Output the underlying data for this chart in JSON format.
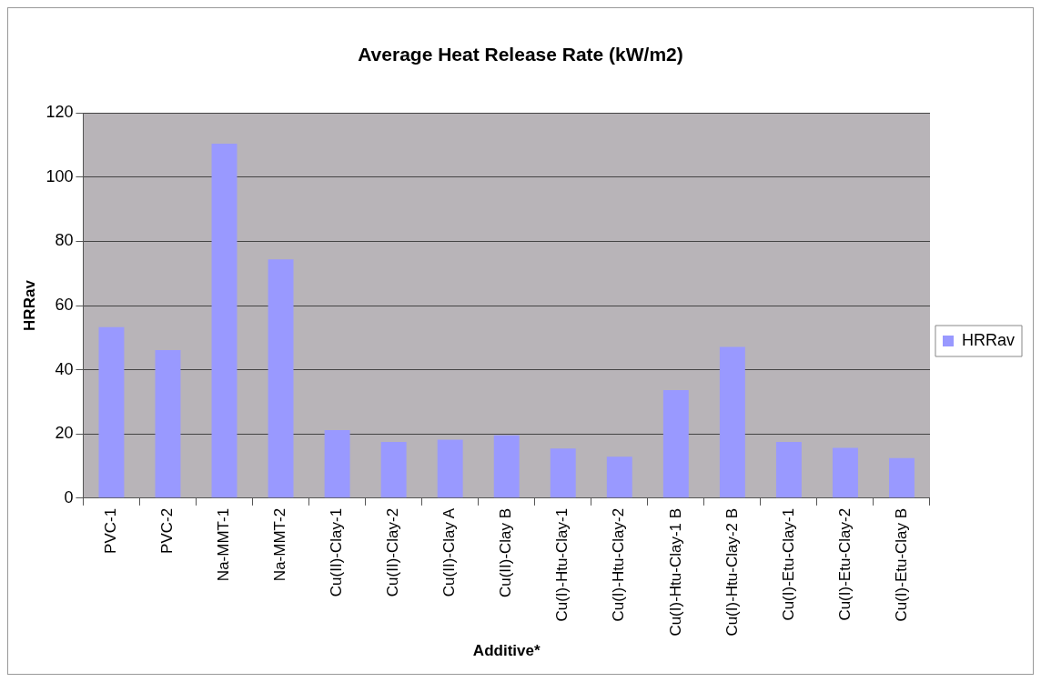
{
  "chart_data": {
    "type": "bar",
    "title": "Average Heat Release Rate (kW/m2)",
    "xlabel": "Additive*",
    "ylabel": "HRRav",
    "categories": [
      "PVC-1",
      "PVC-2",
      "Na-MMT-1",
      "Na-MMT-2",
      "Cu(II)-Clay-1",
      "Cu(II)-Clay-2",
      "Cu(II)-Clay A",
      "Cu(II)-Clay B",
      "Cu(I)-Htu-Clay-1",
      "Cu(I)-Htu-Clay-2",
      "Cu(I)-Htu-Clay-1 B",
      "Cu(I)-Htu-Clay-2 B",
      "Cu(I)-Etu-Clay-1",
      "Cu(I)-Etu-Clay-2",
      "Cu(I)-Etu-Clay B"
    ],
    "series": [
      {
        "name": "HRRav",
        "color": "#9999ff",
        "values": [
          53.3,
          46.1,
          110.4,
          74.4,
          21.2,
          17.5,
          18.2,
          19.6,
          15.5,
          12.9,
          33.7,
          47.1,
          17.5,
          15.7,
          12.5
        ]
      }
    ],
    "ylim": [
      0,
      120
    ],
    "yticks": [
      0,
      20,
      40,
      60,
      80,
      100,
      120
    ],
    "grid": "y",
    "legend": "right"
  }
}
